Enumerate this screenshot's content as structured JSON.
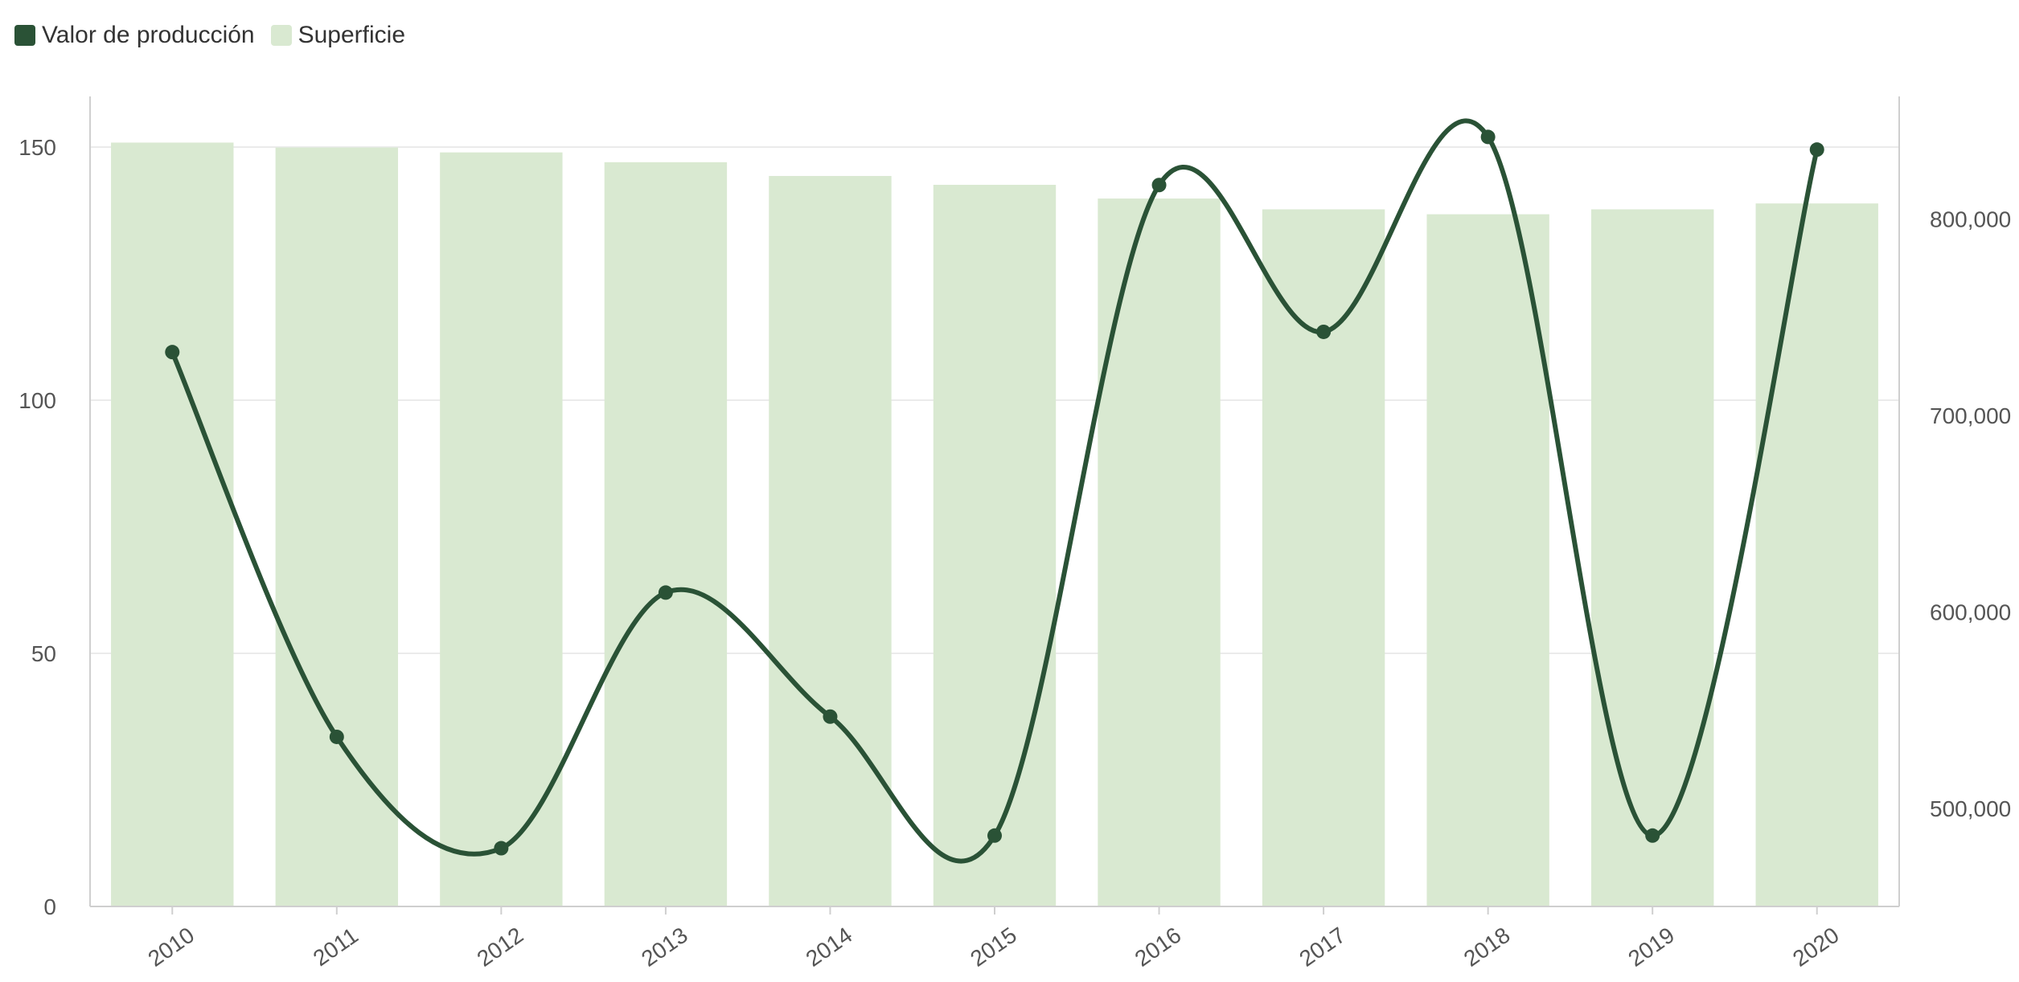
{
  "colors": {
    "line": "#2a5236",
    "bar": "#d9e9d1",
    "grid": "#ebebeb",
    "axis": "#cfcfcf",
    "text": "#555555"
  },
  "chart_data": {
    "type": "bar+line",
    "categories": [
      "2010",
      "2011",
      "2012",
      "2013",
      "2014",
      "2015",
      "2016",
      "2017",
      "2018",
      "2019",
      "2020"
    ],
    "series": [
      {
        "name": "Valor de producción",
        "type": "line",
        "axis": "left",
        "values": [
          109.5,
          33.5,
          11.5,
          62,
          37.5,
          14,
          142.5,
          113.5,
          152,
          14,
          149.5
        ]
      },
      {
        "name": "Superficie",
        "type": "bar",
        "axis": "right",
        "values": [
          839000,
          836500,
          834000,
          829000,
          822000,
          817500,
          810500,
          805000,
          802500,
          805000,
          808000
        ]
      }
    ],
    "y_left": {
      "ticks": [
        "0",
        "50",
        "100",
        "150"
      ],
      "range": [
        0,
        160
      ]
    },
    "y_right": {
      "ticks": [
        "500,000",
        "600,000",
        "700,000",
        "800,000"
      ],
      "range": [
        450000,
        862500
      ]
    },
    "grid": true,
    "legend_position": "top-left"
  }
}
